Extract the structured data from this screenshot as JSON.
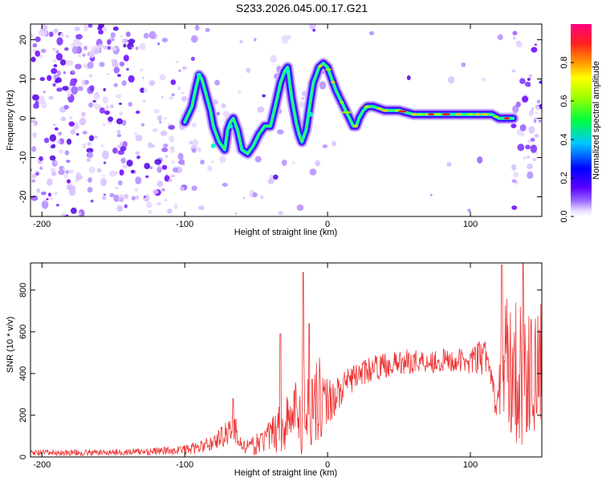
{
  "title": "S233.2026.045.00.17.G21",
  "chart_data": [
    {
      "type": "heatmap",
      "name": "spectrogram",
      "xlabel": "Height of straight line (km)",
      "ylabel": "Frequency (Hz)",
      "xlim": [
        -208,
        150
      ],
      "ylim": [
        -25,
        24
      ],
      "xticks": [
        -200,
        -100,
        0,
        100
      ],
      "yticks": [
        -20,
        -10,
        0,
        10,
        20
      ],
      "xtick_labels": [
        "-200",
        "-100",
        "0",
        "100"
      ],
      "ytick_labels": [
        "-20",
        "-10",
        "0",
        "10",
        "20"
      ],
      "ridge": {
        "x": [
          -100,
          -95,
          -92,
          -90,
          -88,
          -85,
          -82,
          -80,
          -76,
          -72,
          -70,
          -68,
          -66,
          -63,
          -60,
          -56,
          -52,
          -48,
          -44,
          -40,
          -36,
          -33,
          -30,
          -28,
          -25,
          -22,
          -20,
          -18,
          -15,
          -13,
          -10,
          -6,
          -3,
          0,
          3,
          6,
          10,
          14,
          18,
          20,
          22,
          25,
          28,
          32,
          40,
          50,
          60,
          70,
          80,
          90,
          100,
          110,
          115,
          120,
          125,
          130
        ],
        "y": [
          -1,
          3,
          8,
          11,
          10,
          6,
          2,
          -2,
          -6,
          -8,
          -3,
          -1,
          0,
          -3,
          -8,
          -9,
          -7,
          -4,
          -2,
          -2,
          4,
          9,
          12,
          13,
          5,
          -1,
          -4,
          -6,
          -3,
          2,
          9,
          13,
          14,
          13,
          10,
          7,
          4,
          1,
          -2,
          -2,
          0,
          2,
          3,
          3,
          2,
          2,
          1,
          1,
          1,
          1,
          1,
          1,
          1,
          0,
          0,
          0
        ]
      },
      "colorbar": {
        "label": "Normalized spectral amplitude",
        "ticks": [
          0.0,
          0.2,
          0.4,
          0.6,
          0.8
        ],
        "tick_labels": [
          "0.0",
          "0.2",
          "0.4",
          "0.6",
          "0.8"
        ],
        "range": [
          0,
          1
        ]
      }
    },
    {
      "type": "line",
      "name": "snr",
      "color": "#ee3333",
      "xlabel": "Height of straight line (km)",
      "ylabel": "SNR (10 * v/v)",
      "xlim": [
        -208,
        150
      ],
      "ylim": [
        0,
        930
      ],
      "xticks": [
        -200,
        -100,
        0,
        100
      ],
      "yticks": [
        0,
        200,
        400,
        600,
        800
      ],
      "xtick_labels": [
        "-200",
        "-100",
        "0",
        "100"
      ],
      "ytick_labels": [
        "0",
        "200",
        "400",
        "600",
        "800"
      ],
      "envelope": {
        "x": [
          -208,
          -180,
          -150,
          -130,
          -110,
          -100,
          -90,
          -80,
          -72,
          -66,
          -62,
          -60,
          -55,
          -50,
          -45,
          -40,
          -35,
          -33,
          -30,
          -25,
          -20,
          -17,
          -15,
          -12,
          -10,
          -5,
          0,
          5,
          10,
          15,
          20,
          30,
          40,
          50,
          60,
          70,
          80,
          90,
          100,
          105,
          110,
          112,
          115,
          118,
          122,
          125,
          130,
          135,
          140,
          145,
          150
        ],
        "mean": [
          20,
          20,
          22,
          25,
          30,
          35,
          45,
          70,
          110,
          150,
          90,
          50,
          45,
          60,
          80,
          100,
          140,
          170,
          150,
          200,
          230,
          240,
          220,
          250,
          280,
          280,
          270,
          290,
          320,
          360,
          390,
          420,
          440,
          450,
          460,
          460,
          460,
          460,
          460,
          470,
          480,
          460,
          400,
          200,
          450,
          470,
          420,
          400,
          380,
          400,
          450
        ],
        "spread": [
          15,
          15,
          15,
          18,
          20,
          25,
          30,
          40,
          60,
          90,
          45,
          25,
          40,
          50,
          60,
          80,
          120,
          240,
          130,
          150,
          180,
          380,
          170,
          200,
          220,
          200,
          120,
          100,
          80,
          70,
          60,
          60,
          60,
          60,
          60,
          60,
          60,
          60,
          60,
          80,
          100,
          80,
          60,
          40,
          250,
          300,
          350,
          350,
          300,
          300,
          300
        ]
      },
      "peaks": [
        {
          "x": -66,
          "y": 280
        },
        {
          "x": -33,
          "y": 590
        },
        {
          "x": -17,
          "y": 885
        },
        {
          "x": -13,
          "y": 640
        },
        {
          "x": 122,
          "y": 920
        },
        {
          "x": 137,
          "y": 930
        }
      ]
    }
  ]
}
